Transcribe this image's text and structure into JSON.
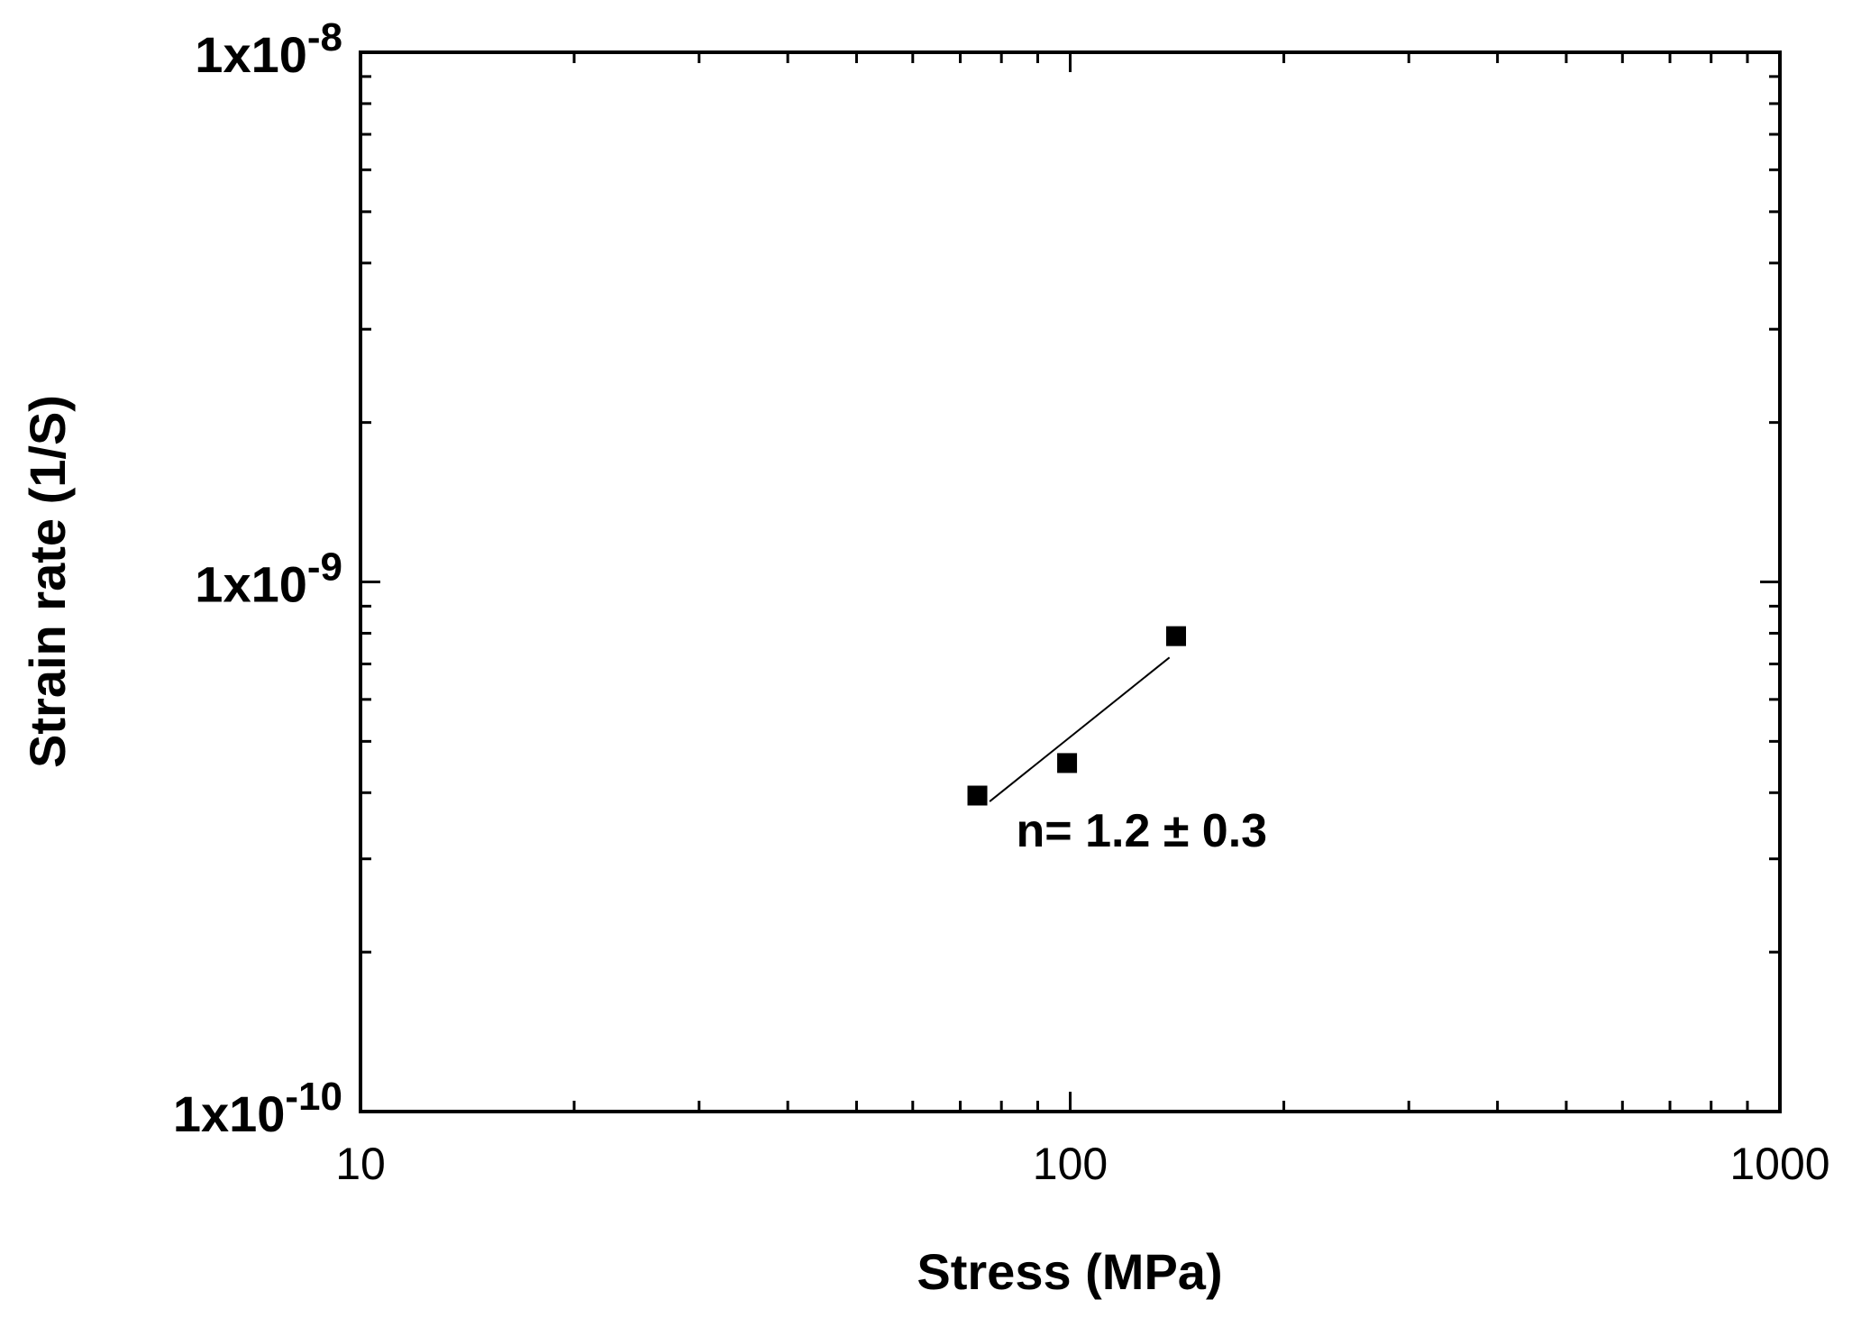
{
  "chart_data": {
    "type": "scatter",
    "xlabel": "Stress (MPa)",
    "ylabel": "Strain rate (1/S)",
    "xscale": "log",
    "yscale": "log",
    "xlim": [
      10,
      1000
    ],
    "ylim": [
      1e-10,
      1e-08
    ],
    "x_ticks": [
      {
        "value": 10,
        "label": "10"
      },
      {
        "value": 100,
        "label": "100"
      },
      {
        "value": 1000,
        "label": "1000"
      }
    ],
    "y_ticks": [
      {
        "value": 1e-08,
        "mantissa": "1x10",
        "exponent": "-8"
      },
      {
        "value": 1e-09,
        "mantissa": "1x10",
        "exponent": "-9"
      },
      {
        "value": 1e-10,
        "mantissa": "1x10",
        "exponent": "-10"
      }
    ],
    "series": [
      {
        "marker": "square",
        "color": "#000000",
        "points": [
          {
            "x": 74,
            "y": 3.95e-10
          },
          {
            "x": 99,
            "y": 4.55e-10
          },
          {
            "x": 141,
            "y": 7.9e-10
          }
        ]
      }
    ],
    "fit_line": {
      "color": "#000000",
      "x": [
        77,
        138
      ],
      "y": [
        3.85e-10,
        7.2e-10
      ]
    },
    "annotations": [
      {
        "text": "n= 1.2 ± 0.3",
        "x": 122,
        "y": 3.4e-10
      }
    ],
    "grid": false,
    "legend": "none"
  }
}
